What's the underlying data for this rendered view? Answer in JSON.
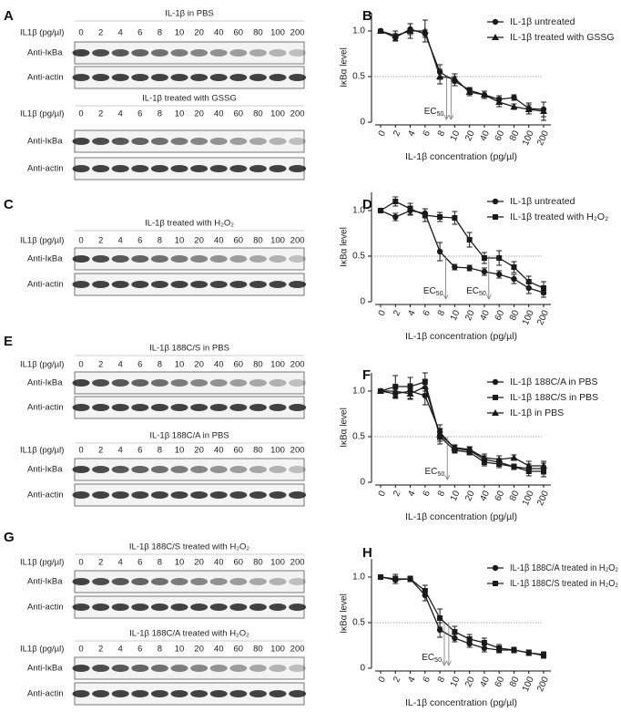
{
  "blot_groups": [
    {
      "panel": "A",
      "blots": [
        {
          "title": "IL-1β in PBS",
          "row_label": "IL1β (pg/µl)",
          "lanes": [
            "0",
            "2",
            "4",
            "6",
            "8",
            "10",
            "20",
            "40",
            "60",
            "80",
            "100",
            "200"
          ],
          "rows": [
            "Anti-IκBa",
            "Anti-actin"
          ]
        },
        {
          "title": "IL-1β treated with GSSG",
          "row_label": "IL1β (pg/µl)",
          "lanes": [
            "0",
            "2",
            "4",
            "6",
            "8",
            "10",
            "20",
            "40",
            "60",
            "80",
            "100",
            "200"
          ],
          "rows": [
            "Anti-IκBa",
            "Anti-actin"
          ]
        }
      ]
    },
    {
      "panel": "C",
      "blots": [
        {
          "title": "IL-1β treated with H₂O₂",
          "row_label": "IL1β (pg/µl)",
          "lanes": [
            "0",
            "2",
            "4",
            "6",
            "8",
            "10",
            "20",
            "40",
            "60",
            "80",
            "100",
            "200"
          ],
          "rows": [
            "Anti-IκBa",
            "Anti-actin"
          ]
        }
      ]
    },
    {
      "panel": "E",
      "blots": [
        {
          "title": "IL-1β 188C/S in PBS",
          "row_label": "IL1β (pg/µl)",
          "lanes": [
            "0",
            "2",
            "4",
            "6",
            "8",
            "10",
            "20",
            "40",
            "60",
            "80",
            "100",
            "200"
          ],
          "rows": [
            "Anti-IκBa",
            "Anti-actin"
          ]
        },
        {
          "title": "IL-1β 188C/A in PBS",
          "row_label": "IL1β (pg/µl)",
          "lanes": [
            "0",
            "2",
            "4",
            "6",
            "8",
            "10",
            "20",
            "40",
            "60",
            "80",
            "100",
            "200"
          ],
          "rows": [
            "Anti-IκBa",
            "Anti-actin"
          ]
        }
      ]
    },
    {
      "panel": "G",
      "blots": [
        {
          "title": "IL-1β 188C/S treated with H₂O₂",
          "row_label": "IL1β (pg/µl)",
          "lanes": [
            "0",
            "2",
            "4",
            "6",
            "8",
            "10",
            "20",
            "40",
            "60",
            "80",
            "100",
            "200"
          ],
          "rows": [
            "Anti-IκBa",
            "Anti-actin"
          ]
        },
        {
          "title": "IL-1β 188C/A treated with H₂O₂",
          "row_label": "IL1β (pg/µl)",
          "lanes": [
            "0",
            "2",
            "4",
            "6",
            "8",
            "10",
            "20",
            "40",
            "60",
            "80",
            "100",
            "200"
          ],
          "rows": [
            "Anti-IκBa",
            "Anti-actin"
          ]
        }
      ]
    }
  ],
  "chart_data": [
    {
      "type": "line",
      "panel": "B",
      "x_label": "IL-1β concentration (pg/µl)",
      "y_label": "IκBα level",
      "categories": [
        "0",
        "2",
        "4",
        "6",
        "8",
        "10",
        "20",
        "40",
        "60",
        "80",
        "100",
        "200"
      ],
      "ylim": [
        0,
        1.2
      ],
      "yticks": [
        0,
        0.5,
        {
          "value": 1,
          "label": "1.0"
        }
      ],
      "reference_line": 0.5,
      "legend": "upper right",
      "series": [
        {
          "name": "IL-1β untreated",
          "color": "#1a1a1a",
          "marker": "circle",
          "values": [
            1.0,
            0.93,
            1.02,
            0.97,
            0.55,
            0.45,
            0.35,
            0.3,
            0.25,
            0.27,
            0.15,
            0.14
          ],
          "errors": [
            0.02,
            0.04,
            0.06,
            0.04,
            0.08,
            0.05,
            0.03,
            0.04,
            0.04,
            0.03,
            0.06,
            0.08
          ]
        },
        {
          "name": "IL-1β treated with GSSG",
          "color": "#1a1a1a",
          "marker": "triangle",
          "values": [
            1.0,
            0.95,
            1.0,
            1.0,
            0.5,
            0.48,
            0.33,
            0.3,
            0.22,
            0.17,
            0.14,
            0.12
          ],
          "errors": [
            0.02,
            0.05,
            0.08,
            0.12,
            0.08,
            0.05,
            0.04,
            0.04,
            0.05,
            0.03,
            0.05,
            0.1
          ]
        }
      ],
      "annotations": [
        {
          "text": "EC",
          "sub": "50",
          "arrows": [
            4.45,
            4.75
          ]
        }
      ]
    },
    {
      "type": "line",
      "panel": "D",
      "x_label": "IL-1β concentration (pg/µl)",
      "y_label": "IκBα level",
      "categories": [
        "0",
        "2",
        "4",
        "6",
        "8",
        "10",
        "20",
        "40",
        "60",
        "80",
        "100",
        "200"
      ],
      "ylim": [
        0,
        1.2
      ],
      "yticks": [
        0,
        0.5,
        {
          "value": 1,
          "label": "1.0"
        }
      ],
      "reference_line": 0.5,
      "legend": "upper right",
      "series": [
        {
          "name": "IL-1β untreated",
          "color": "#1a1a1a",
          "marker": "circle",
          "values": [
            1.0,
            0.93,
            1.0,
            0.97,
            0.55,
            0.38,
            0.37,
            0.33,
            0.3,
            0.25,
            0.15,
            0.1
          ],
          "errors": [
            0.02,
            0.04,
            0.05,
            0.05,
            0.1,
            0.03,
            0.03,
            0.04,
            0.04,
            0.05,
            0.06,
            0.05
          ]
        },
        {
          "name": "IL-1β treated with H₂O₂",
          "color": "#1a1a1a",
          "marker": "square",
          "values": [
            1.0,
            1.1,
            1.02,
            0.95,
            0.93,
            0.92,
            0.68,
            0.48,
            0.48,
            0.38,
            0.22,
            0.15
          ],
          "errors": [
            0.02,
            0.05,
            0.06,
            0.07,
            0.05,
            0.07,
            0.08,
            0.06,
            0.08,
            0.06,
            0.06,
            0.07
          ]
        }
      ],
      "annotations": [
        {
          "text": "EC",
          "sub": "50",
          "arrows": [
            4.4
          ]
        },
        {
          "text": "EC",
          "sub": "50",
          "arrows": [
            7.3
          ]
        }
      ]
    },
    {
      "type": "line",
      "panel": "F",
      "x_label": "IL-1β concentration (pg/µl)",
      "y_label": "IκBα level",
      "categories": [
        "0",
        "2",
        "4",
        "6",
        "8",
        "10",
        "20",
        "40",
        "60",
        "80",
        "100",
        "200"
      ],
      "ylim": [
        0,
        1.2
      ],
      "yticks": [
        0,
        0.5,
        {
          "value": 1,
          "label": "1.0"
        }
      ],
      "reference_line": 0.5,
      "legend": "upper right",
      "series": [
        {
          "name": "IL-1β 188C/A in PBS",
          "color": "#1a1a1a",
          "marker": "circle",
          "values": [
            1.0,
            0.97,
            1.0,
            0.95,
            0.55,
            0.37,
            0.35,
            0.25,
            0.22,
            0.17,
            0.15,
            0.15
          ],
          "errors": [
            0.02,
            0.05,
            0.08,
            0.1,
            0.08,
            0.03,
            0.03,
            0.04,
            0.04,
            0.03,
            0.05,
            0.06
          ]
        },
        {
          "name": "IL-1β 188C/S in PBS",
          "color": "#1a1a1a",
          "marker": "square",
          "values": [
            1.0,
            1.05,
            1.05,
            1.1,
            0.5,
            0.35,
            0.33,
            0.22,
            0.2,
            0.17,
            0.12,
            0.12
          ],
          "errors": [
            0.02,
            0.12,
            0.1,
            0.1,
            0.08,
            0.03,
            0.03,
            0.04,
            0.04,
            0.03,
            0.05,
            0.06
          ]
        },
        {
          "name": "IL-1β in PBS",
          "color": "#1a1a1a",
          "marker": "triangle",
          "values": [
            1.0,
            1.0,
            0.97,
            1.05,
            0.52,
            0.38,
            0.36,
            0.27,
            0.25,
            0.27,
            0.18,
            0.18
          ],
          "errors": [
            0.02,
            0.06,
            0.06,
            0.08,
            0.07,
            0.03,
            0.03,
            0.04,
            0.04,
            0.03,
            0.05,
            0.05
          ]
        }
      ],
      "annotations": [
        {
          "text": "EC",
          "sub": "50",
          "arrows": [
            4.5
          ]
        }
      ]
    },
    {
      "type": "line",
      "panel": "H",
      "x_label": "IL-1β concentration (pg/µl)",
      "y_label": "IκBα level",
      "categories": [
        "0",
        "2",
        "4",
        "6",
        "8",
        "10",
        "20",
        "40",
        "60",
        "80",
        "100",
        "200"
      ],
      "ylim": [
        0,
        1.2
      ],
      "yticks": [
        0,
        0.5,
        {
          "value": 1,
          "label": "1.0"
        }
      ],
      "reference_line": 0.5,
      "legend": "upper right",
      "series": [
        {
          "name": "IL-1β 188C/A treated in H₂O₂",
          "color": "#1a1a1a",
          "marker": "circle",
          "values": [
            1.0,
            0.97,
            0.98,
            0.8,
            0.42,
            0.33,
            0.27,
            0.22,
            0.2,
            0.2,
            0.17,
            0.14
          ],
          "errors": [
            0.02,
            0.04,
            0.03,
            0.06,
            0.08,
            0.04,
            0.04,
            0.04,
            0.03,
            0.03,
            0.03,
            0.03
          ]
        },
        {
          "name": "IL-1β 188C/S treated in H₂O₂",
          "color": "#1a1a1a",
          "marker": "square",
          "values": [
            1.0,
            0.98,
            0.98,
            0.85,
            0.55,
            0.4,
            0.32,
            0.28,
            0.22,
            0.2,
            0.17,
            0.15
          ],
          "errors": [
            0.02,
            0.05,
            0.03,
            0.06,
            0.1,
            0.06,
            0.05,
            0.05,
            0.04,
            0.03,
            0.03,
            0.03
          ]
        }
      ],
      "annotations": [
        {
          "text": "EC",
          "sub": "50",
          "arrows": [
            4.3,
            4.6
          ]
        }
      ]
    }
  ]
}
